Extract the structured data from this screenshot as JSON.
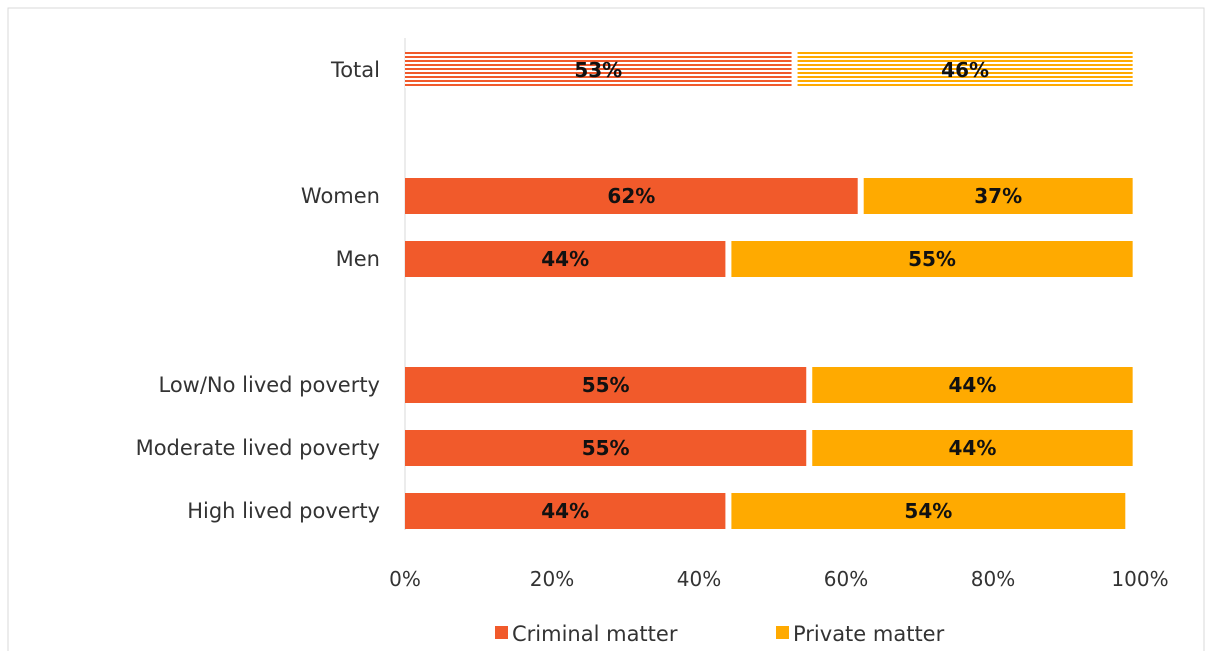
{
  "chart_data": {
    "type": "bar",
    "orientation": "horizontal",
    "stacked": true,
    "categories": [
      "Total",
      "Women",
      "Men",
      "Low/No lived poverty",
      "Moderate lived poverty",
      "High lived poverty"
    ],
    "series": [
      {
        "name": "Criminal matter",
        "color": "#F15A2B",
        "values": [
          53,
          62,
          44,
          55,
          55,
          44
        ]
      },
      {
        "name": "Private matter",
        "color": "#FFAA00",
        "values": [
          46,
          37,
          55,
          44,
          44,
          54
        ]
      }
    ],
    "data_labels": [
      [
        "53%",
        "62%",
        "44%",
        "55%",
        "55%",
        "44%"
      ],
      [
        "46%",
        "37%",
        "55%",
        "44%",
        "44%",
        "54%"
      ]
    ],
    "patterned_categories": [
      "Total"
    ],
    "xlim": [
      0,
      100
    ],
    "x_ticks": [
      "0%",
      "20%",
      "40%",
      "60%",
      "80%",
      "100%"
    ],
    "grid": false,
    "legend_position": "bottom",
    "title": "",
    "xlabel": "",
    "ylabel": ""
  }
}
